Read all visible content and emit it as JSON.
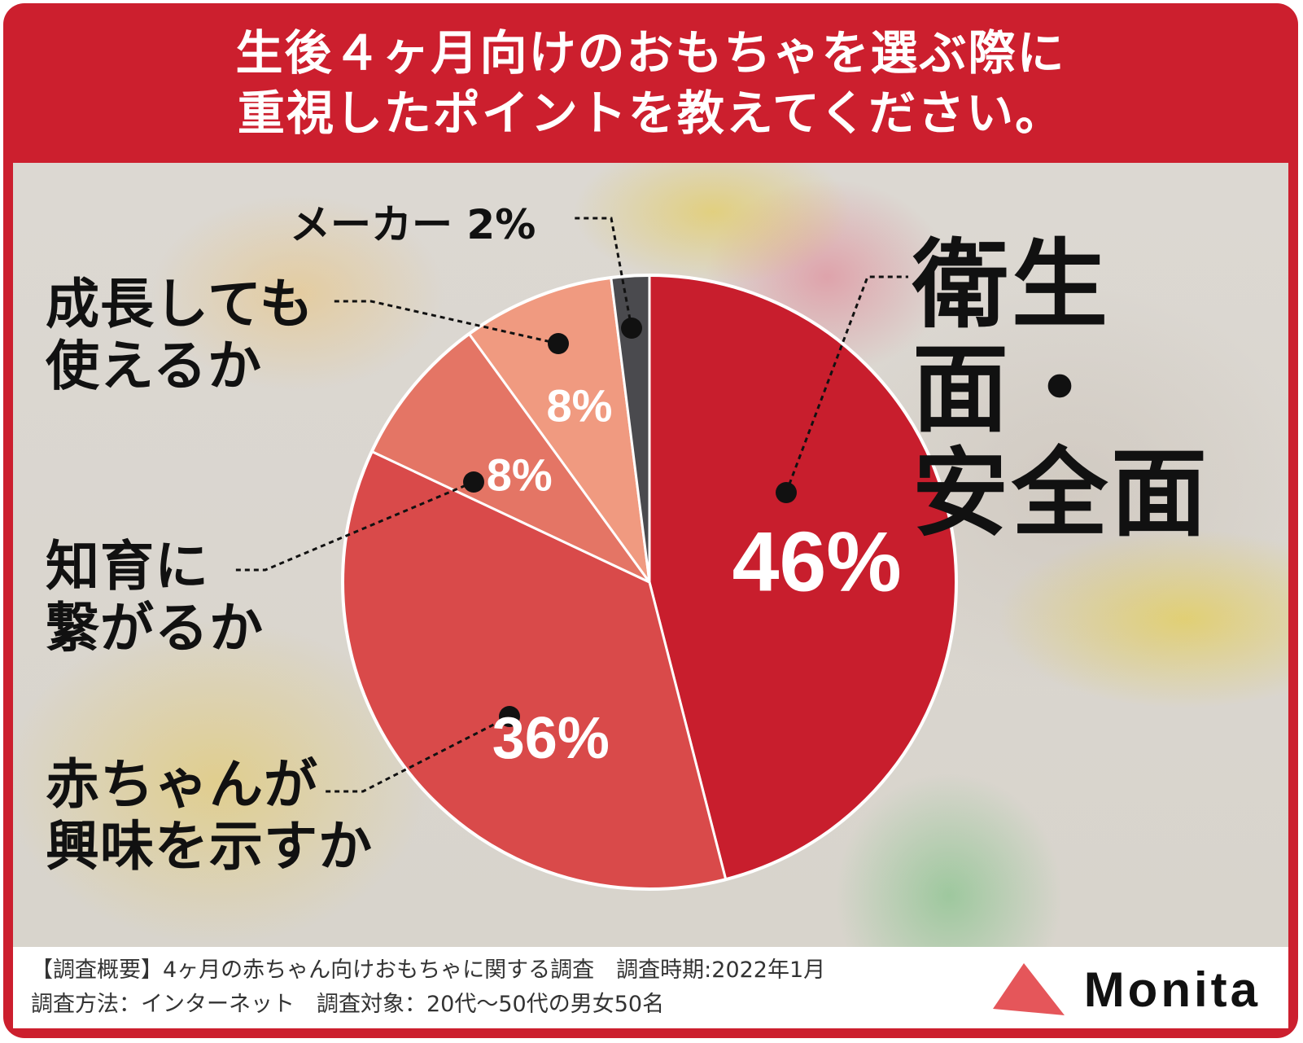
{
  "title": {
    "line1": "生後４ヶ月向けのおもちゃを選ぶ際に",
    "line2": "重視したポイントを教えてください。"
  },
  "chart_data": {
    "type": "pie",
    "title": "生後４ヶ月向けのおもちゃを選ぶ際に重視したポイントを教えてください。",
    "start": "12 o'clock, clockwise",
    "slices": [
      {
        "label": "衛生面・安全面",
        "value": 46,
        "value_label": "46%",
        "color": "#c81e2d"
      },
      {
        "label": "赤ちゃんが興味を示すか",
        "value": 36,
        "value_label": "36%",
        "color": "#d94a4a"
      },
      {
        "label": "知育に繋がるか",
        "value": 8,
        "value_label": "8%",
        "color": "#e47565"
      },
      {
        "label": "成長しても使えるか",
        "value": 8,
        "value_label": "8%",
        "color": "#f09a80"
      },
      {
        "label": "メーカー",
        "value": 2,
        "value_label": "2%",
        "color": "#4a4a4e"
      }
    ]
  },
  "labels": {
    "safety": [
      "衛生面・",
      "安全面"
    ],
    "interest": [
      "赤ちゃんが",
      "興味を示すか"
    ],
    "education": [
      "知育に",
      "繋がるか"
    ],
    "growth": [
      "成長しても",
      "使えるか"
    ],
    "maker": "メーカー 2%"
  },
  "footer": {
    "survey_line1": "【調査概要】4ヶ月の赤ちゃん向けおもちゃに関する調査　調査時期:2022年1月",
    "survey_line2": "調査方法：インターネット　調査対象：20代〜50代の男女50名",
    "brand": "Monita"
  },
  "colors": {
    "frame": "#cc1f2e",
    "text_dark": "#111111",
    "slice_text": "#ffffff"
  }
}
